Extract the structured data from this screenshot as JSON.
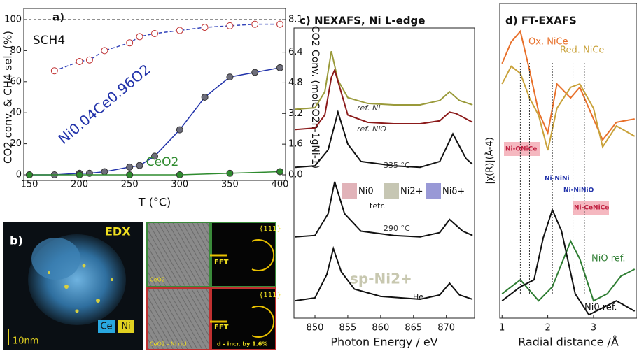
{
  "chart_data": [
    {
      "type": "line",
      "panel": "a)",
      "xlabel": "T (°C)",
      "ylabel": "CO2 conv. & CH4 sel. (%)",
      "y2label": "CO2 Conv. (molCO2h-1gNi-1)",
      "xlim": [
        150,
        400
      ],
      "xticks": [
        150,
        200,
        250,
        300,
        350,
        400
      ],
      "ylim": [
        0,
        100
      ],
      "yticks": [
        0,
        20,
        40,
        60,
        80,
        100
      ],
      "y2lim": [
        0,
        8.1
      ],
      "y2ticks": [
        {
          "value": 0,
          "label": "0.0"
        },
        1.6,
        3.2,
        4.8,
        6.4,
        8.1
      ],
      "hline": 100,
      "series": [
        {
          "name": "SCH4",
          "color": "#3344bb",
          "dashed": true,
          "marker_color": "#ffffff",
          "x": [
            175,
            200,
            210,
            225,
            250,
            260,
            275,
            300,
            325,
            350,
            375,
            400
          ],
          "values": [
            67,
            73,
            74,
            80,
            85,
            89,
            91,
            93,
            95,
            96,
            97,
            97
          ]
        },
        {
          "name": "Ni0.04Ce0.96O2",
          "color": "#2233aa",
          "dashed": false,
          "marker_color": "#6d6d7a",
          "x": [
            150,
            175,
            200,
            210,
            225,
            250,
            260,
            275,
            300,
            325,
            350,
            375,
            400
          ],
          "values": [
            0,
            0,
            1,
            1,
            2,
            5,
            6,
            12,
            29,
            50,
            63,
            66,
            69
          ]
        },
        {
          "name": "CeO2",
          "color": "#2e8b2e",
          "dashed": false,
          "marker_color": "#2e8b2e",
          "x": [
            150,
            200,
            250,
            300,
            350,
            400
          ],
          "values": [
            0,
            0,
            0,
            0,
            1,
            2
          ]
        }
      ]
    },
    {
      "type": "line",
      "title": "c) NEXAFS, Ni L-edge",
      "xlabel": "Photon Energy / eV",
      "xlim": [
        846.8,
        874.3
      ],
      "xticks": [
        850,
        855,
        860,
        865,
        870
      ],
      "ylim": [
        0,
        10
      ],
      "components": [
        {
          "name": "Ni0",
          "color": "#d9a0a8"
        },
        {
          "name": "Ni2+",
          "color": "#b8b8a0"
        },
        {
          "name": "Niδ+",
          "color": "#8080cc"
        }
      ],
      "annotations": [
        "ref. Ni",
        "ref. NiO",
        "335 °C",
        "tetr.",
        "290 °C",
        "sp-Ni2+",
        "He"
      ],
      "series": [
        {
          "name": "ref. Ni",
          "color": "#9a9a3a",
          "x": [
            847,
            850,
            851.5,
            852.5,
            853.5,
            855,
            858,
            862,
            866,
            869,
            870.5,
            872,
            874
          ],
          "values": [
            7.2,
            7.25,
            7.8,
            9.2,
            8.2,
            7.6,
            7.4,
            7.35,
            7.35,
            7.5,
            7.8,
            7.5,
            7.35
          ]
        },
        {
          "name": "ref. NiO",
          "color": "#8b1a1a",
          "x": [
            847,
            850,
            851.5,
            852.5,
            853,
            855,
            858,
            862,
            866,
            869,
            870.5,
            871.5,
            874
          ],
          "values": [
            6.5,
            6.55,
            7.0,
            8.3,
            8.55,
            7.0,
            6.75,
            6.7,
            6.7,
            6.8,
            7.1,
            7.05,
            6.75
          ]
        },
        {
          "name": "335 °C",
          "color": "#111111",
          "x": [
            847,
            850,
            852,
            853.5,
            855,
            857,
            862,
            866,
            869,
            871,
            873,
            874
          ],
          "values": [
            5.2,
            5.25,
            5.8,
            7.1,
            6.0,
            5.4,
            5.25,
            5.2,
            5.4,
            6.35,
            5.5,
            5.3
          ]
        },
        {
          "name": "290 °C",
          "color": "#111111",
          "x": [
            847,
            850,
            852,
            853,
            854.5,
            857,
            862,
            866,
            869,
            870.5,
            872.5,
            874
          ],
          "values": [
            2.8,
            2.85,
            3.6,
            4.7,
            3.6,
            3.0,
            2.85,
            2.8,
            2.95,
            3.4,
            3.0,
            2.85
          ]
        },
        {
          "name": "He",
          "color": "#111111",
          "x": [
            847,
            850,
            851.8,
            852.8,
            854,
            856,
            860,
            866,
            869,
            870.5,
            872,
            874
          ],
          "values": [
            0.6,
            0.7,
            1.5,
            2.4,
            1.6,
            1.0,
            0.75,
            0.65,
            0.8,
            1.2,
            0.8,
            0.65
          ]
        }
      ]
    },
    {
      "type": "line",
      "title": "d) FT-EXAFS",
      "xlabel": "Radial distance /Å",
      "ylabel": "|χ(R)|(Å-4)",
      "xlim": [
        0.95,
        3.95
      ],
      "xticks": [
        1,
        2,
        3
      ],
      "ylim": [
        0,
        10
      ],
      "annotations": [
        "Ni-ONiCe",
        "Ni-NiNi",
        "Ni-NiNiO",
        "Ni-CeNiCe"
      ],
      "series": [
        {
          "name": "Ox. NiCe",
          "color": "#e8702a",
          "x": [
            1.0,
            1.2,
            1.4,
            1.6,
            1.8,
            2.0,
            2.2,
            2.5,
            2.7,
            3.0,
            3.2,
            3.5,
            3.9
          ],
          "values": [
            8.37,
            9.08,
            9.43,
            8.16,
            6.78,
            6.09,
            7.7,
            7.24,
            7.59,
            6.55,
            5.86,
            6.44,
            6.55
          ]
        },
        {
          "name": "Red. NiCe",
          "color": "#c9a23a",
          "x": [
            1.0,
            1.2,
            1.4,
            1.6,
            1.8,
            2.0,
            2.2,
            2.5,
            2.7,
            3.0,
            3.2,
            3.5,
            3.9
          ],
          "values": [
            7.7,
            8.28,
            8.05,
            7.24,
            6.67,
            5.52,
            6.9,
            7.59,
            7.7,
            6.9,
            5.63,
            6.32,
            5.98
          ]
        },
        {
          "name": "NiO ref.",
          "color": "#2e7d32",
          "x": [
            1.0,
            1.4,
            1.8,
            2.1,
            2.5,
            2.7,
            3.0,
            3.3,
            3.6,
            3.9
          ],
          "values": [
            0.8,
            1.26,
            0.57,
            1.03,
            2.53,
            1.95,
            0.57,
            0.8,
            1.38,
            1.61
          ]
        },
        {
          "name": "Ni0 ref.",
          "color": "#111111",
          "x": [
            1.0,
            1.4,
            1.7,
            1.9,
            2.1,
            2.3,
            2.6,
            2.9,
            3.2,
            3.5,
            3.9
          ],
          "values": [
            0.57,
            1.03,
            1.26,
            2.64,
            3.56,
            2.87,
            0.8,
            0.11,
            0.34,
            0.57,
            0.23
          ]
        }
      ]
    }
  ],
  "panel_b": {
    "label": "b)",
    "edx": "EDX",
    "scale": "10nm",
    "ce": "Ce",
    "ni": "Ni",
    "fft": "FFT",
    "plane": "{111}",
    "tem_top": "CeO2",
    "tem_bottom": "CeO2 - Ni rich",
    "note": "d - incr. by 1.6%"
  }
}
